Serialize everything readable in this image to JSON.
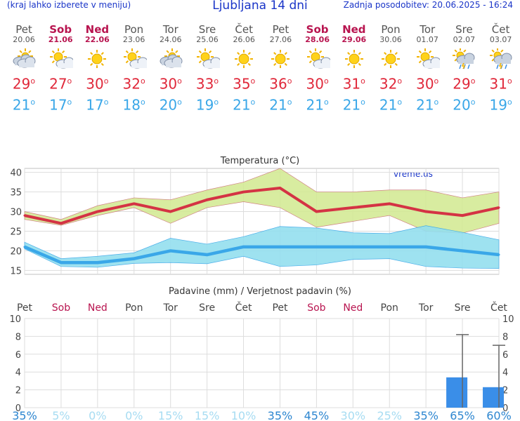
{
  "header": {
    "menu_hint": "(kraj lahko izberete v meniju)",
    "title": "Ljubljana 14 dni",
    "updated": "Zadnja posodobitev: 20.06.2025 - 16:24"
  },
  "days": [
    {
      "name": "Pet",
      "date": "20.06",
      "weekend": false,
      "icon": "partly-cloudy-icon",
      "tmax": "29",
      "tmin": "21"
    },
    {
      "name": "Sob",
      "date": "21.06",
      "weekend": true,
      "icon": "sun-cloud-icon",
      "tmax": "27",
      "tmin": "17"
    },
    {
      "name": "Ned",
      "date": "22.06",
      "weekend": true,
      "icon": "sun-icon",
      "tmax": "30",
      "tmin": "17"
    },
    {
      "name": "Pon",
      "date": "23.06",
      "weekend": false,
      "icon": "sun-cloud-icon",
      "tmax": "32",
      "tmin": "18"
    },
    {
      "name": "Tor",
      "date": "24.06",
      "weekend": false,
      "icon": "partly-cloudy-icon",
      "tmax": "30",
      "tmin": "20"
    },
    {
      "name": "Sre",
      "date": "25.06",
      "weekend": false,
      "icon": "sun-cloud-icon",
      "tmax": "33",
      "tmin": "19"
    },
    {
      "name": "Čet",
      "date": "26.06",
      "weekend": false,
      "icon": "sun-icon",
      "tmax": "35",
      "tmin": "21"
    },
    {
      "name": "Pet",
      "date": "27.06",
      "weekend": false,
      "icon": "sun-icon",
      "tmax": "36",
      "tmin": "21"
    },
    {
      "name": "Sob",
      "date": "28.06",
      "weekend": true,
      "icon": "sun-cloud-icon",
      "tmax": "30",
      "tmin": "21"
    },
    {
      "name": "Ned",
      "date": "29.06",
      "weekend": true,
      "icon": "sun-icon",
      "tmax": "31",
      "tmin": "21"
    },
    {
      "name": "Pon",
      "date": "30.06",
      "weekend": false,
      "icon": "sun-icon",
      "tmax": "32",
      "tmin": "21"
    },
    {
      "name": "Tor",
      "date": "01.07",
      "weekend": false,
      "icon": "sun-cloud-icon",
      "tmax": "30",
      "tmin": "21"
    },
    {
      "name": "Sre",
      "date": "02.07",
      "weekend": false,
      "icon": "storm-icon",
      "tmax": "29",
      "tmin": "20"
    },
    {
      "name": "Čet",
      "date": "03.07",
      "weekend": false,
      "icon": "storm-icon",
      "tmax": "31",
      "tmin": "19"
    }
  ],
  "colors": {
    "max": "#e0283a",
    "min": "#3aa7e8",
    "weekend": "#b8144f",
    "rain": "#3a8ee8"
  },
  "chart_data": [
    {
      "type": "line",
      "title": "Temperatura (°C)",
      "watermark": "vreme.us",
      "ylim": [
        14,
        41
      ],
      "yticks": [
        15,
        20,
        25,
        30,
        35,
        40
      ],
      "series": [
        {
          "name": "max",
          "values": [
            29,
            27,
            30,
            32,
            30,
            33,
            35,
            36,
            30,
            31,
            32,
            30,
            29,
            31
          ],
          "band_low": [
            28,
            26.5,
            29,
            31,
            27,
            31,
            32.5,
            31,
            26,
            27.5,
            29,
            25,
            24.5,
            27
          ],
          "band_high": [
            30,
            28,
            31.5,
            33.5,
            33,
            35.5,
            37.5,
            41,
            35,
            35,
            35.5,
            35.5,
            33.5,
            35
          ]
        },
        {
          "name": "min",
          "values": [
            21,
            17,
            17,
            18,
            20,
            19,
            21,
            21,
            21,
            21,
            21,
            21,
            20,
            19
          ],
          "band_low": [
            20.5,
            16,
            15.8,
            16.8,
            17,
            16.7,
            18.6,
            16,
            16.4,
            17.8,
            18,
            16,
            15.6,
            15.5
          ],
          "band_high": [
            22.2,
            18,
            18.6,
            19.5,
            23.2,
            21.7,
            23.6,
            26.2,
            25.8,
            24.6,
            24.4,
            26.4,
            24.7,
            22.8
          ]
        }
      ]
    },
    {
      "type": "bar",
      "title": "Padavine (mm) / Verjetnost padavin (%)",
      "ylim": [
        0,
        10
      ],
      "yticks": [
        0,
        2,
        4,
        6,
        8,
        10
      ],
      "values": [
        0,
        0,
        0,
        0,
        0,
        0,
        0,
        0,
        0,
        0,
        0,
        0,
        3.4,
        2.3
      ],
      "error_high": [
        0,
        0,
        0,
        0,
        0,
        0,
        0,
        0,
        0,
        0,
        0,
        0,
        8.2,
        7.0
      ],
      "probability": [
        "35%",
        "5%",
        "0%",
        "0%",
        "15%",
        "15%",
        "10%",
        "35%",
        "45%",
        "30%",
        "25%",
        "35%",
        "65%",
        "60%"
      ]
    }
  ]
}
